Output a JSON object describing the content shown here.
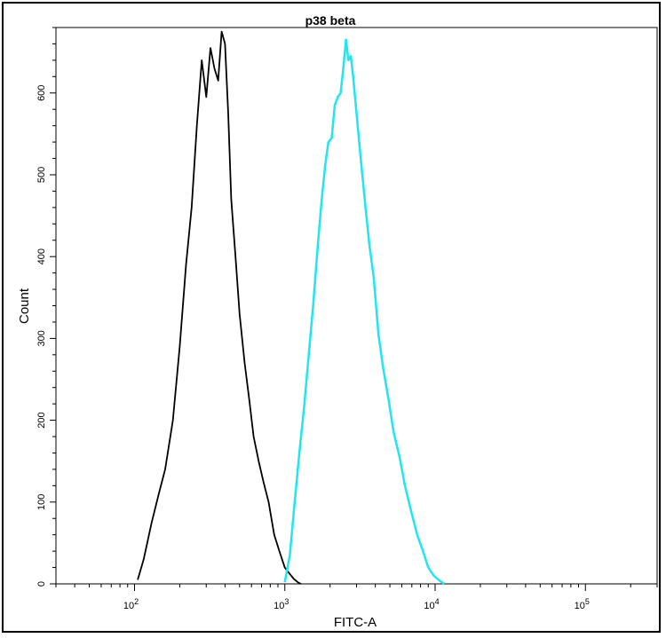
{
  "chart_data": {
    "type": "area",
    "title": "p38 beta",
    "xlabel": "FITC-A",
    "ylabel": "Count",
    "x_scale": "log",
    "xlim": [
      30,
      300000
    ],
    "ylim": [
      0,
      680
    ],
    "x_ticks": [
      {
        "value": 100,
        "base": "10",
        "exp": "2"
      },
      {
        "value": 1000,
        "base": "10",
        "exp": "3"
      },
      {
        "value": 10000,
        "base": "10",
        "exp": "4"
      },
      {
        "value": 100000,
        "base": "10",
        "exp": "5"
      }
    ],
    "y_ticks": [
      0,
      100,
      200,
      300,
      400,
      500,
      600
    ],
    "grid": false,
    "series": [
      {
        "color": "#000000",
        "x": [
          105,
          115,
          130,
          145,
          160,
          180,
          200,
          220,
          240,
          260,
          280,
          300,
          320,
          340,
          360,
          380,
          400,
          420,
          440,
          470,
          500,
          540,
          580,
          620,
          670,
          720,
          780,
          850,
          920,
          1000,
          1080,
          1150,
          1220,
          1280
        ],
        "y": [
          5,
          30,
          75,
          110,
          140,
          200,
          290,
          390,
          460,
          560,
          640,
          595,
          655,
          630,
          615,
          675,
          660,
          575,
          470,
          400,
          330,
          270,
          225,
          180,
          150,
          125,
          100,
          60,
          40,
          20,
          12,
          6,
          2,
          0
        ]
      },
      {
        "color": "#22e6ee",
        "x": [
          1000,
          1080,
          1150,
          1250,
          1350,
          1450,
          1550,
          1650,
          1750,
          1850,
          1950,
          2050,
          2150,
          2250,
          2350,
          2450,
          2550,
          2650,
          2750,
          2850,
          3000,
          3200,
          3400,
          3650,
          3900,
          4200,
          4500,
          4900,
          5300,
          5800,
          6300,
          6900,
          7600,
          8300,
          9000,
          9800,
          10700,
          11500
        ],
        "y": [
          2,
          35,
          90,
          160,
          220,
          285,
          345,
          410,
          465,
          510,
          540,
          545,
          585,
          595,
          600,
          630,
          665,
          640,
          645,
          620,
          575,
          520,
          470,
          415,
          375,
          305,
          265,
          225,
          185,
          155,
          120,
          90,
          60,
          40,
          20,
          10,
          4,
          0
        ]
      }
    ]
  }
}
